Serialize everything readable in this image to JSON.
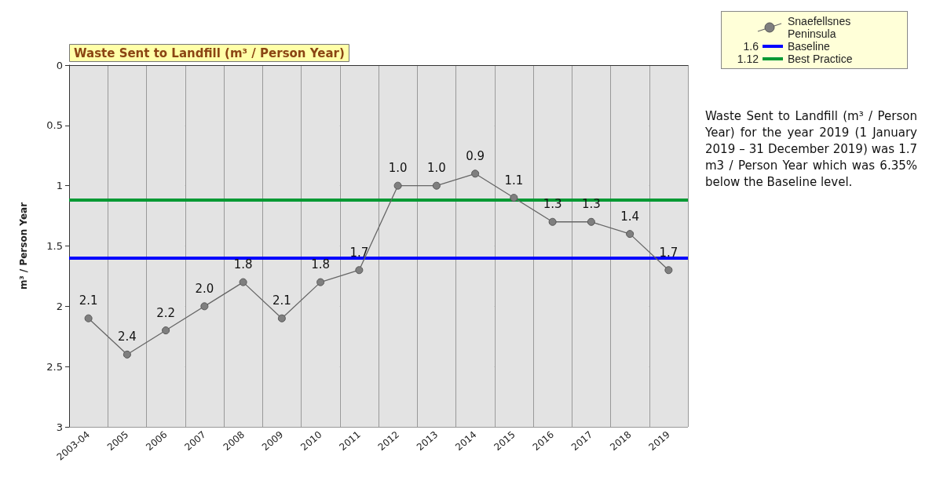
{
  "chart_data": {
    "type": "line",
    "title": "Waste Sent to Landfill (m³ / Person Year)",
    "ylabel": "m³ / Person Year",
    "categories": [
      "2003-04",
      "2005",
      "2006",
      "2007",
      "2008",
      "2009",
      "2010",
      "2011",
      "2012",
      "2013",
      "2014",
      "2015",
      "2016",
      "2017",
      "2018",
      "2019"
    ],
    "series": [
      {
        "name": "Snaefellsnes Peninsula",
        "color": "#7f7f7f",
        "values": [
          2.1,
          2.4,
          2.2,
          2.0,
          1.8,
          2.1,
          1.8,
          1.7,
          1.0,
          1.0,
          0.9,
          1.1,
          1.3,
          1.3,
          1.4,
          1.7
        ],
        "value_labels": [
          "2.1",
          "2.4",
          "2.2",
          "2.0",
          "1.8",
          "2.1",
          "1.8",
          "1.7",
          "1.0",
          "1.0",
          "0.9",
          "1.1",
          "1.3",
          "1.3",
          "1.4",
          "1.7"
        ]
      }
    ],
    "ylim": [
      3,
      0
    ],
    "yticks": [
      0,
      0.5,
      1,
      1.5,
      2,
      2.5,
      3
    ],
    "grid": true,
    "legend": "top right",
    "marker": "circle",
    "ref_lines": [
      {
        "axis": "y",
        "value": 1.6,
        "label": "Baseline",
        "color": "#0000ff"
      },
      {
        "axis": "y",
        "value": 1.12,
        "label": "Best Practice",
        "color": "#009933"
      }
    ],
    "annotations": [
      "1.6",
      "1.12",
      "Waste Sent to Landfill (m³ / Person Year) for the year 2019 (1 January 2019 – 31 December 2019) was 1.7 m3 / Person Year which was 6.35% below the Baseline level."
    ]
  }
}
